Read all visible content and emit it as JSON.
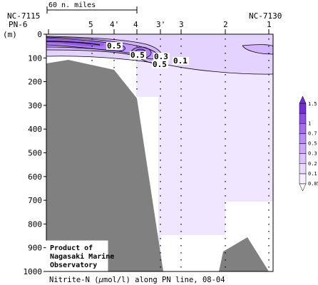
{
  "chart_data": {
    "type": "heatmap",
    "title": "Nitrite-N (μmol/l) along PN line, 08-04",
    "title_parts": [
      "Nitrite-N (",
      "μ",
      "mol/l) along PN line, 08-04"
    ],
    "ylabel": "(m)",
    "ylim": [
      0,
      1000
    ],
    "yticks": [
      0,
      100,
      200,
      300,
      400,
      500,
      600,
      700,
      800,
      900,
      1000
    ],
    "scale_bar_label": "60 n. miles",
    "end_labels": {
      "left": "NC-7115",
      "right": "NC-7130"
    },
    "stations": [
      "PN-6",
      "5",
      "4'",
      "4",
      "3'",
      "3",
      "2",
      "1"
    ],
    "legend": {
      "levels": [
        0.05,
        0.1,
        0.2,
        0.3,
        0.5,
        0.7,
        1,
        1.5
      ],
      "labels": [
        "0.05",
        "0.1",
        "0.2",
        "0.3",
        "0.5",
        "0.7",
        "1",
        "1.5"
      ],
      "colors": [
        "#f7efff",
        "#ead9ff",
        "#dcc2ff",
        "#cda8fa",
        "#bb8cf5",
        "#a66eec",
        "#8f4fe0",
        "#7430cc"
      ]
    },
    "contour_labels": [
      "0.5",
      "0.5",
      "0.3",
      "0.5",
      "0.1"
    ],
    "credit": [
      "Product of",
      "Nagasaki Marine",
      "Observatory"
    ]
  }
}
